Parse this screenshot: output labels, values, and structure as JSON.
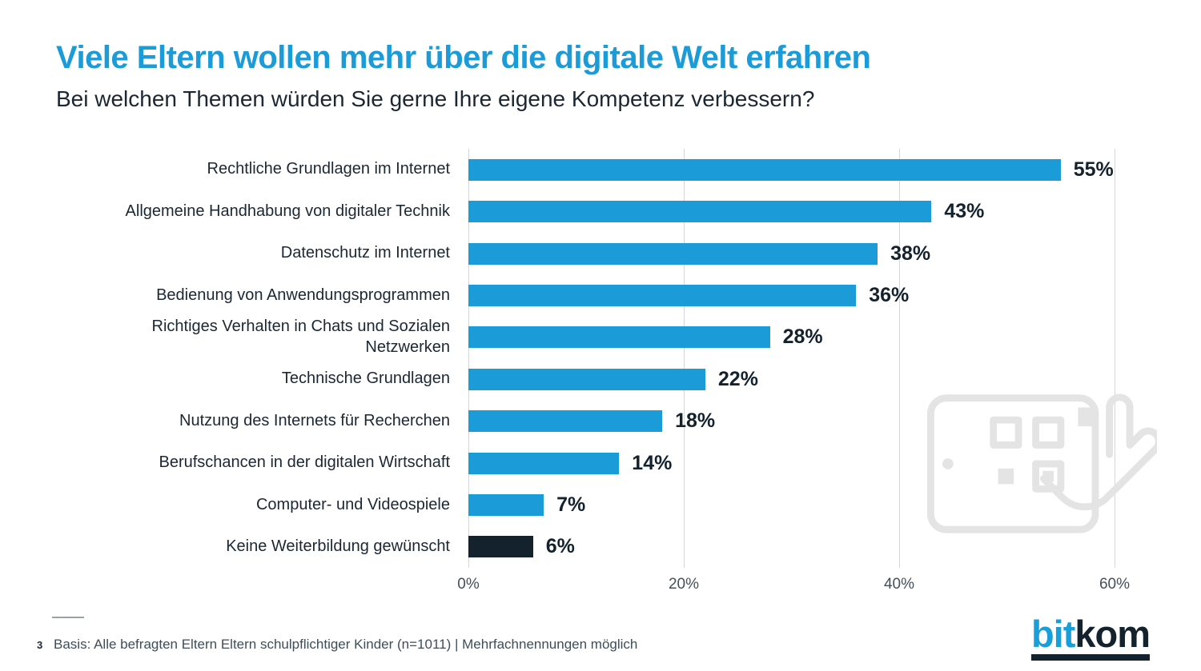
{
  "header": {
    "title": "Viele Eltern wollen mehr über die digitale Welt erfahren",
    "subtitle": "Bei welchen Themen würden Sie gerne Ihre eigene Kompetenz verbessern?"
  },
  "chart_data": {
    "type": "bar",
    "orientation": "horizontal",
    "title": "Viele Eltern wollen mehr über die digitale Welt erfahren",
    "subtitle": "Bei welchen Themen würden Sie gerne Ihre eigene Kompetenz verbessern?",
    "categories": [
      "Rechtliche Grundlagen im Internet",
      "Allgemeine Handhabung von digitaler Technik",
      "Datenschutz im Internet",
      "Bedienung von Anwendungsprogrammen",
      "Richtiges Verhalten in Chats und Sozialen Netzwerken",
      "Technische Grundlagen",
      "Nutzung des Internets für Recherchen",
      "Berufschancen in der digitalen Wirtschaft",
      "Computer- und Videospiele",
      "Keine Weiterbildung gewünscht"
    ],
    "values": [
      55,
      43,
      38,
      36,
      28,
      22,
      18,
      14,
      7,
      6
    ],
    "value_labels": [
      "55%",
      "43%",
      "38%",
      "36%",
      "28%",
      "22%",
      "18%",
      "14%",
      "7%",
      "6%"
    ],
    "bar_colors": [
      "#1b9cd8",
      "#1b9cd8",
      "#1b9cd8",
      "#1b9cd8",
      "#1b9cd8",
      "#1b9cd8",
      "#1b9cd8",
      "#1b9cd8",
      "#1b9cd8",
      "#13222d"
    ],
    "xlim": [
      0,
      60
    ],
    "x_ticks": [
      {
        "value": 0,
        "label": "0%"
      },
      {
        "value": 20,
        "label": "20%"
      },
      {
        "value": 40,
        "label": "40%"
      },
      {
        "value": 60,
        "label": "60%"
      }
    ],
    "grid": true,
    "legend": false,
    "xlabel": "",
    "ylabel": ""
  },
  "footer": {
    "page_number": "3",
    "basis": "Basis: Alle befragten Eltern Eltern schulpflichtiger Kinder (n=1011) | Mehrfachnennungen möglich"
  },
  "logo": {
    "part1": "bit",
    "part2": "kom"
  },
  "colors": {
    "accent_blue": "#1b9cd8",
    "dark_navy": "#13222d",
    "grid_gray": "#d3d7da",
    "watermark_gray": "#e4e4e4"
  },
  "watermark": {
    "icon": "tablet-in-hand-icon"
  }
}
